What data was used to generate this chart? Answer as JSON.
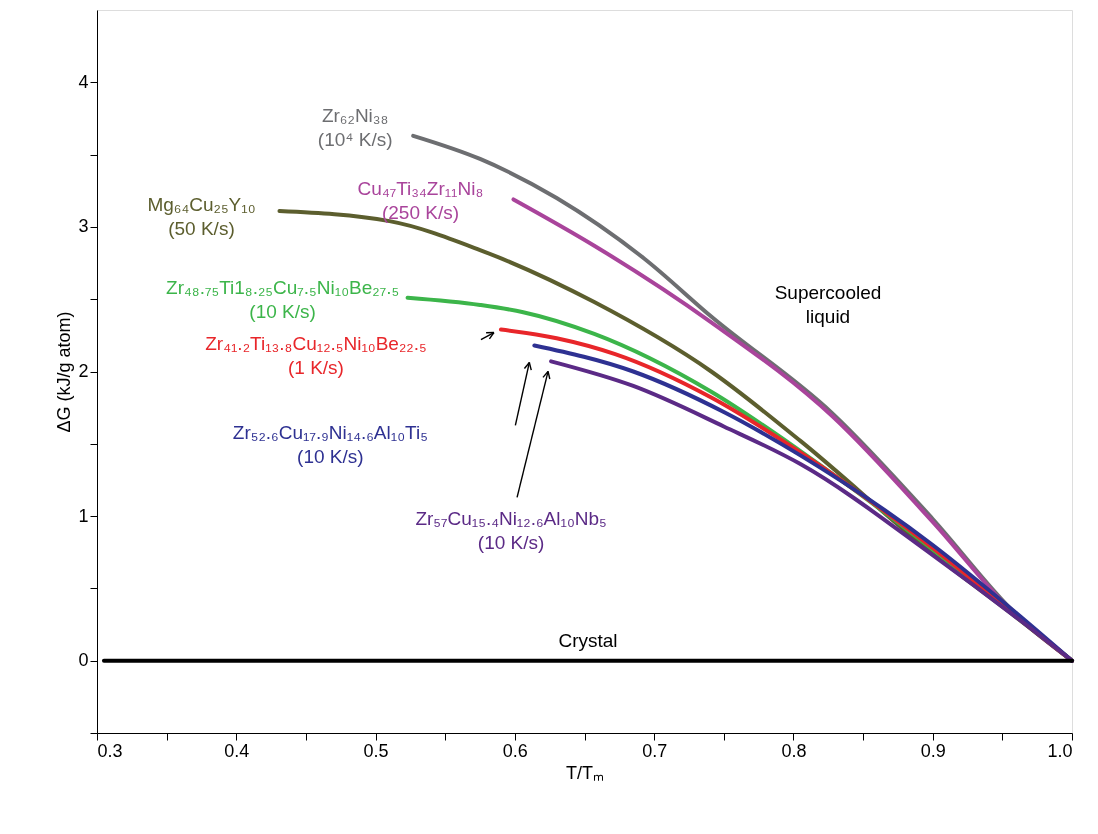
{
  "chart_data": {
    "type": "line",
    "xlabel": "T/Tₘ",
    "ylabel": "ΔG (kJ/g atom)",
    "xlim": [
      0.3,
      1.0
    ],
    "ylim": [
      -0.5,
      4.5
    ],
    "xticks": [
      0.3,
      {
        "value": 0.35,
        "label": null
      },
      0.4,
      {
        "value": 0.45,
        "label": null
      },
      0.5,
      {
        "value": 0.55,
        "label": null
      },
      0.6,
      {
        "value": 0.65,
        "label": null
      },
      0.7,
      {
        "value": 0.75,
        "label": null
      },
      0.8,
      {
        "value": 0.85,
        "label": null
      },
      0.9,
      {
        "value": 0.95,
        "label": null
      },
      {
        "value": 1.0,
        "label": "1.0"
      }
    ],
    "yticks": [
      {
        "value": -0.5,
        "label": null
      },
      0,
      {
        "value": 0.5,
        "label": null
      },
      1,
      {
        "value": 1.5,
        "label": null
      },
      2,
      {
        "value": 2.5,
        "label": null
      },
      3,
      {
        "value": 3.5,
        "label": null
      },
      4
    ],
    "grid": false,
    "marker": "none",
    "line_style": "solid",
    "annotations": [
      "Supercooled\nliquid"
    ],
    "series": [
      {
        "name": "Zr₆₂Ni₃₈\n(10⁴ K/s)",
        "color": "#6d6e71",
        "x": [
          0.527,
          0.575,
          0.63,
          0.693,
          0.741,
          0.828,
          0.9,
          0.96,
          1.0
        ],
        "values": [
          3.63,
          3.47,
          3.2,
          2.78,
          2.38,
          1.71,
          0.98,
          0.32,
          0
        ]
      },
      {
        "name": "Cu₄₇Ti₃₄Zr₁₁Ni₈\n(250 K/s)",
        "color": "#a9449b",
        "x": [
          0.599,
          0.657,
          0.741,
          0.828,
          0.9,
          0.96,
          1.0
        ],
        "values": [
          3.19,
          2.87,
          2.34,
          1.69,
          0.96,
          0.31,
          0
        ]
      },
      {
        "name": "Mg₆₄Cu₂₅Y₁₀\n(50 K/s)",
        "color": "#5c5e2e",
        "x": [
          0.431,
          0.51,
          0.575,
          0.657,
          0.741,
          0.805,
          0.9,
          0.96,
          1.0
        ],
        "values": [
          3.11,
          3.04,
          2.84,
          2.48,
          2.0,
          1.52,
          0.74,
          0.3,
          0
        ]
      },
      {
        "name": "Zr₄₈.₇₅Ti1₈.₂₅Cu₇.₅Ni₁₀Be₂₇.₅\n(10 K/s)",
        "color": "#3cb54a",
        "x": [
          0.523,
          0.575,
          0.606,
          0.657,
          0.741,
          0.805,
          0.9,
          0.96,
          1.0
        ],
        "values": [
          2.51,
          2.46,
          2.41,
          2.26,
          1.86,
          1.45,
          0.77,
          0.31,
          0
        ]
      },
      {
        "name": "Zr₄₁.₂Ti₁₃.₈Cu₁₂.₅Ni₁₀Be₂₂.₅\n(1 K/s)",
        "color": "#e8262a",
        "x": [
          0.59,
          0.63,
          0.672,
          0.741,
          0.805,
          0.9,
          0.96,
          1.0
        ],
        "values": [
          2.29,
          2.23,
          2.12,
          1.82,
          1.44,
          0.78,
          0.31,
          0
        ]
      },
      {
        "name": "Zr₅₂.₆Cu₁₇.₉Ni₁₄.₆Al₁₀Ti₅\n(10 K/s)",
        "color": "#2e3192",
        "x": [
          0.614,
          0.685,
          0.75,
          0.805,
          0.9,
          0.96,
          1.0
        ],
        "values": [
          2.18,
          2.0,
          1.72,
          1.42,
          0.8,
          0.33,
          0
        ]
      },
      {
        "name": "Zr₅₇Cu₁₅.₄Ni₁₂.₆Al₁₀Nb₅\n(10 K/s)",
        "color": "#5b2a86",
        "x": [
          0.626,
          0.685,
          0.75,
          0.805,
          0.9,
          0.96,
          1.0
        ],
        "values": [
          2.07,
          1.9,
          1.62,
          1.36,
          0.73,
          0.3,
          0
        ]
      },
      {
        "name": "Crystal",
        "color": "#000000",
        "x": [
          0.305,
          1.0
        ],
        "values": [
          0,
          0
        ]
      }
    ]
  }
}
